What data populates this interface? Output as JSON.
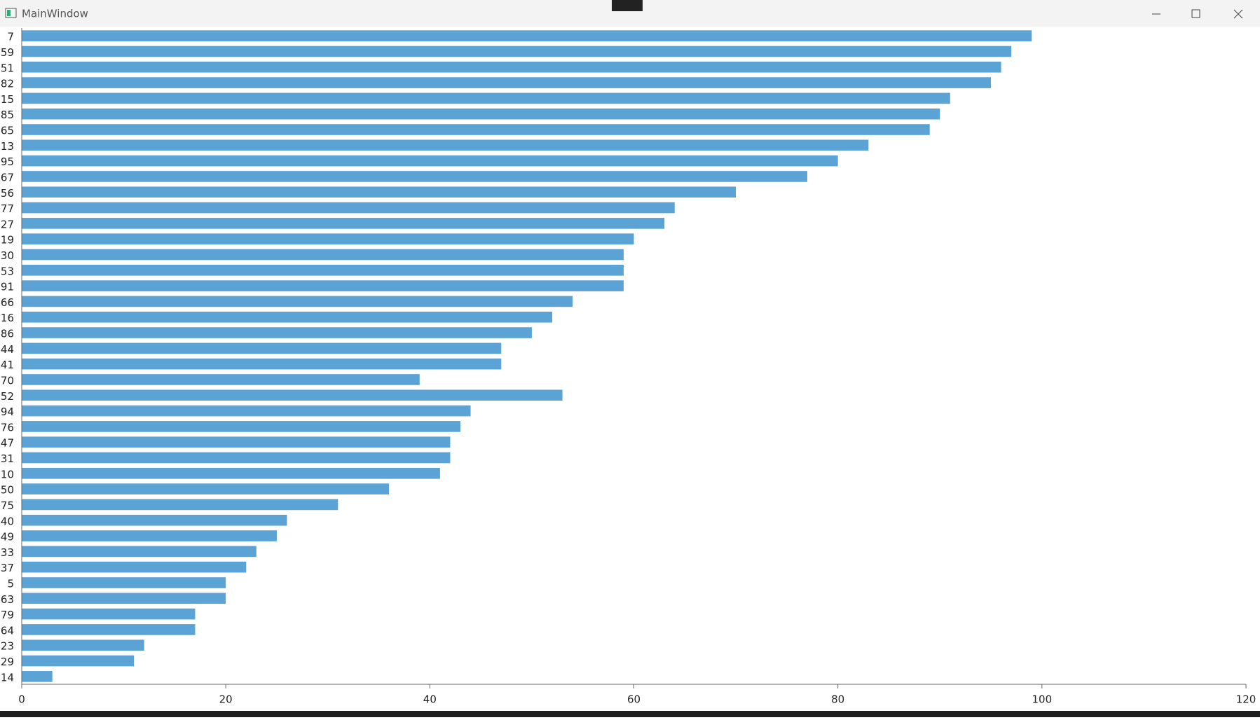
{
  "window": {
    "title": "MainWindow"
  },
  "chart_data": {
    "type": "barh",
    "categories": [
      "7",
      "59",
      "51",
      "82",
      "15",
      "85",
      "65",
      "13",
      "95",
      "67",
      "56",
      "77",
      "27",
      "19",
      "30",
      "53",
      "91",
      "66",
      "16",
      "86",
      "44",
      "41",
      "70",
      "52",
      "94",
      "76",
      "47",
      "31",
      "10",
      "50",
      "75",
      "40",
      "49",
      "33",
      "37",
      "5",
      "63",
      "79",
      "64",
      "23",
      "29",
      "14"
    ],
    "values": [
      99,
      97,
      96,
      95,
      91,
      90,
      89,
      83,
      80,
      77,
      70,
      64,
      63,
      60,
      59,
      59,
      59,
      54,
      52,
      50,
      47,
      47,
      39,
      53,
      44,
      43,
      42,
      42,
      41,
      36,
      31,
      26,
      25,
      23,
      22,
      20,
      20,
      17,
      17,
      12,
      11,
      3
    ],
    "color": "#5ba3d4",
    "xlim": [
      0,
      120
    ],
    "xticks": [
      0,
      20,
      40,
      60,
      80,
      100,
      120
    ],
    "grid": false
  }
}
